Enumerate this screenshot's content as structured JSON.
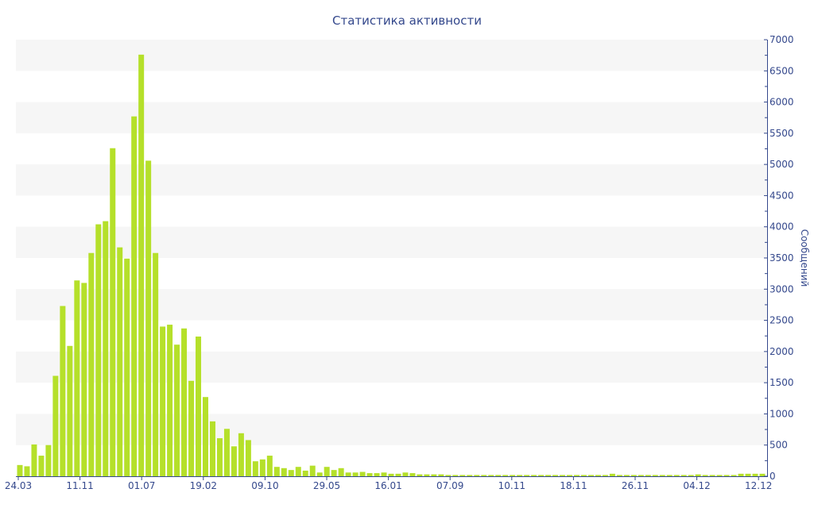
{
  "chart_data": {
    "type": "bar",
    "title": "Статистика активности",
    "ylabel": "Сообщений",
    "xlabel": "",
    "ylim": [
      0,
      7000
    ],
    "y_ticks": [
      0,
      500,
      1000,
      1500,
      2000,
      2500,
      3000,
      3500,
      4000,
      4500,
      5000,
      5500,
      6000,
      6500,
      7000
    ],
    "y_axis_side": "right",
    "x_tick_labels": [
      "24.03",
      "11.11",
      "01.07",
      "19.02",
      "09.10",
      "29.05",
      "16.01",
      "07.09",
      "10.11",
      "18.11",
      "26.11",
      "04.12",
      "12.12"
    ],
    "grid": "alternating horizontal bands",
    "colors": {
      "bar": "#b5e02a",
      "band": "#f6f6f6",
      "text": "#34488c",
      "axis": "#34488c"
    },
    "values": [
      180,
      160,
      510,
      330,
      500,
      1610,
      2730,
      2090,
      3140,
      3100,
      3580,
      4040,
      4090,
      5260,
      3670,
      3490,
      5770,
      6760,
      5060,
      3580,
      2400,
      2430,
      2110,
      2370,
      1530,
      2240,
      1270,
      880,
      610,
      760,
      480,
      690,
      580,
      240,
      270,
      330,
      150,
      130,
      100,
      150,
      90,
      170,
      60,
      150,
      100,
      130,
      60,
      60,
      70,
      50,
      50,
      60,
      40,
      40,
      60,
      50,
      30,
      30,
      30,
      30,
      20,
      20,
      20,
      20,
      20,
      20,
      20,
      20,
      20,
      20,
      20,
      20,
      20,
      20,
      20,
      20,
      20,
      20,
      20,
      20,
      20,
      20,
      20,
      40,
      20,
      20,
      20,
      20,
      20,
      20,
      20,
      20,
      20,
      20,
      20,
      30,
      20,
      20,
      20,
      20,
      20,
      40,
      40,
      40,
      40
    ]
  }
}
